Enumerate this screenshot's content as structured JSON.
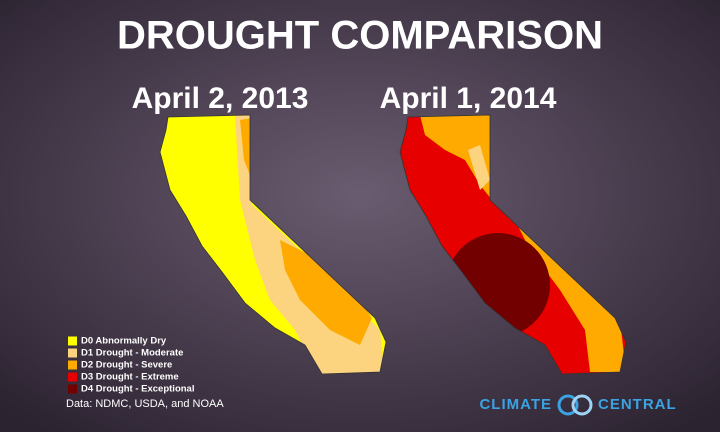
{
  "header": {
    "title": "DROUGHT COMPARISON"
  },
  "maps": [
    {
      "label": "April 2, 2013"
    },
    {
      "label": "April 1, 2014"
    }
  ],
  "legend": [
    {
      "label": "D0 Abnormally Dry",
      "color": "#ffff00"
    },
    {
      "label": "D1 Drought - Moderate",
      "color": "#fcd37f"
    },
    {
      "label": "D2 Drought - Severe",
      "color": "#ffaa00"
    },
    {
      "label": "D3 Drought - Extreme",
      "color": "#e60000"
    },
    {
      "label": "D4 Drought - Exceptional",
      "color": "#730000"
    }
  ],
  "source": "Data: NDMC, USDA, and NOAA",
  "logo": {
    "words": [
      "CLIMATE",
      "CENTRAL"
    ]
  }
}
